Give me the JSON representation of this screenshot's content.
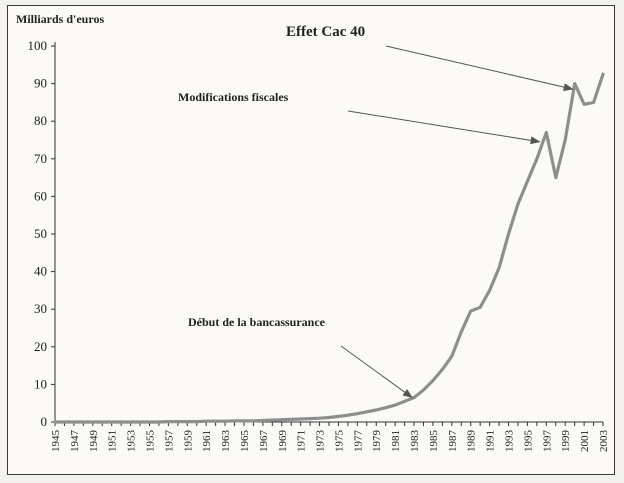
{
  "chart_data": {
    "type": "line",
    "ylabel": "Milliards d'euros",
    "ylim": [
      0,
      100
    ],
    "yticks": [
      0,
      10,
      20,
      30,
      40,
      50,
      60,
      70,
      80,
      90,
      100
    ],
    "xtick_labels": [
      "1945",
      "1947",
      "1949",
      "1951",
      "1953",
      "1955",
      "1957",
      "1959",
      "1961",
      "1963",
      "1965",
      "1967",
      "1969",
      "1971",
      "1973",
      "1975",
      "1977",
      "1979",
      "1981",
      "1983",
      "1985",
      "1987",
      "1989",
      "1991",
      "1993",
      "1995",
      "1997",
      "1999",
      "2001",
      "2003"
    ],
    "x": [
      1945,
      1946,
      1947,
      1948,
      1949,
      1950,
      1951,
      1952,
      1953,
      1954,
      1955,
      1956,
      1957,
      1958,
      1959,
      1960,
      1961,
      1962,
      1963,
      1964,
      1965,
      1966,
      1967,
      1968,
      1969,
      1970,
      1971,
      1972,
      1973,
      1974,
      1975,
      1976,
      1977,
      1978,
      1979,
      1980,
      1981,
      1982,
      1983,
      1984,
      1985,
      1986,
      1987,
      1988,
      1989,
      1990,
      1991,
      1992,
      1993,
      1994,
      1995,
      1996,
      1997,
      1998,
      1999,
      2000,
      2001,
      2002,
      2003
    ],
    "series": [
      {
        "color": "#8e8e8e",
        "values": [
          0,
          0,
          0,
          0,
          0,
          0,
          0,
          0,
          0,
          0,
          0,
          0,
          0.1,
          0.1,
          0.1,
          0.1,
          0.2,
          0.2,
          0.2,
          0.3,
          0.3,
          0.3,
          0.4,
          0.5,
          0.6,
          0.7,
          0.8,
          0.9,
          1.0,
          1.2,
          1.5,
          1.8,
          2.2,
          2.7,
          3.2,
          3.8,
          4.5,
          5.5,
          6.5,
          8.5,
          11,
          14,
          17.5,
          24,
          29.5,
          30.5,
          35,
          41,
          50,
          58,
          64,
          70,
          77,
          65,
          75,
          90,
          84.5,
          85,
          92.5
        ]
      }
    ],
    "annotations": [
      {
        "text": "Effet Cac 40",
        "year": 2000,
        "value": 88
      },
      {
        "text": "Modifications fiscales",
        "year": 1996.5,
        "value": 74
      },
      {
        "text": "Début de la bancassurance",
        "year": 1983,
        "value": 6
      }
    ]
  }
}
